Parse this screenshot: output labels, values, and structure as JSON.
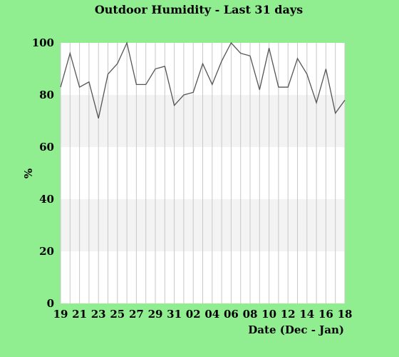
{
  "chart_data": {
    "type": "line",
    "title": "Outdoor Humidity - Last 31 days",
    "xlabel": "Date (Dec - Jan)",
    "ylabel": "%",
    "ylim": [
      0,
      100
    ],
    "yticks": [
      "0",
      "20",
      "40",
      "60",
      "80",
      "100"
    ],
    "xtick_labels": [
      "19",
      "21",
      "23",
      "25",
      "27",
      "29",
      "31",
      "02",
      "04",
      "06",
      "08",
      "10",
      "12",
      "14",
      "16",
      "18"
    ],
    "grid": true,
    "band_color": "#f3f3f3",
    "plot_background": "#ffffff",
    "grid_color": "#c8c8c8",
    "line_color": "#555555",
    "series": [
      {
        "x": [
          "19",
          "20",
          "21",
          "22",
          "23",
          "24",
          "25",
          "26",
          "27",
          "28",
          "29",
          "30",
          "31",
          "01",
          "02",
          "03",
          "04",
          "05",
          "06",
          "07",
          "08",
          "09",
          "10",
          "11",
          "12",
          "13",
          "14",
          "15",
          "16",
          "17",
          "18"
        ],
        "values": [
          83,
          96,
          83,
          85,
          71,
          88,
          92,
          100,
          84,
          84,
          90,
          91,
          76,
          80,
          81,
          92,
          84,
          93,
          100,
          96,
          95,
          82,
          98,
          83,
          83,
          94,
          88,
          77,
          90,
          73,
          78
        ]
      }
    ]
  }
}
